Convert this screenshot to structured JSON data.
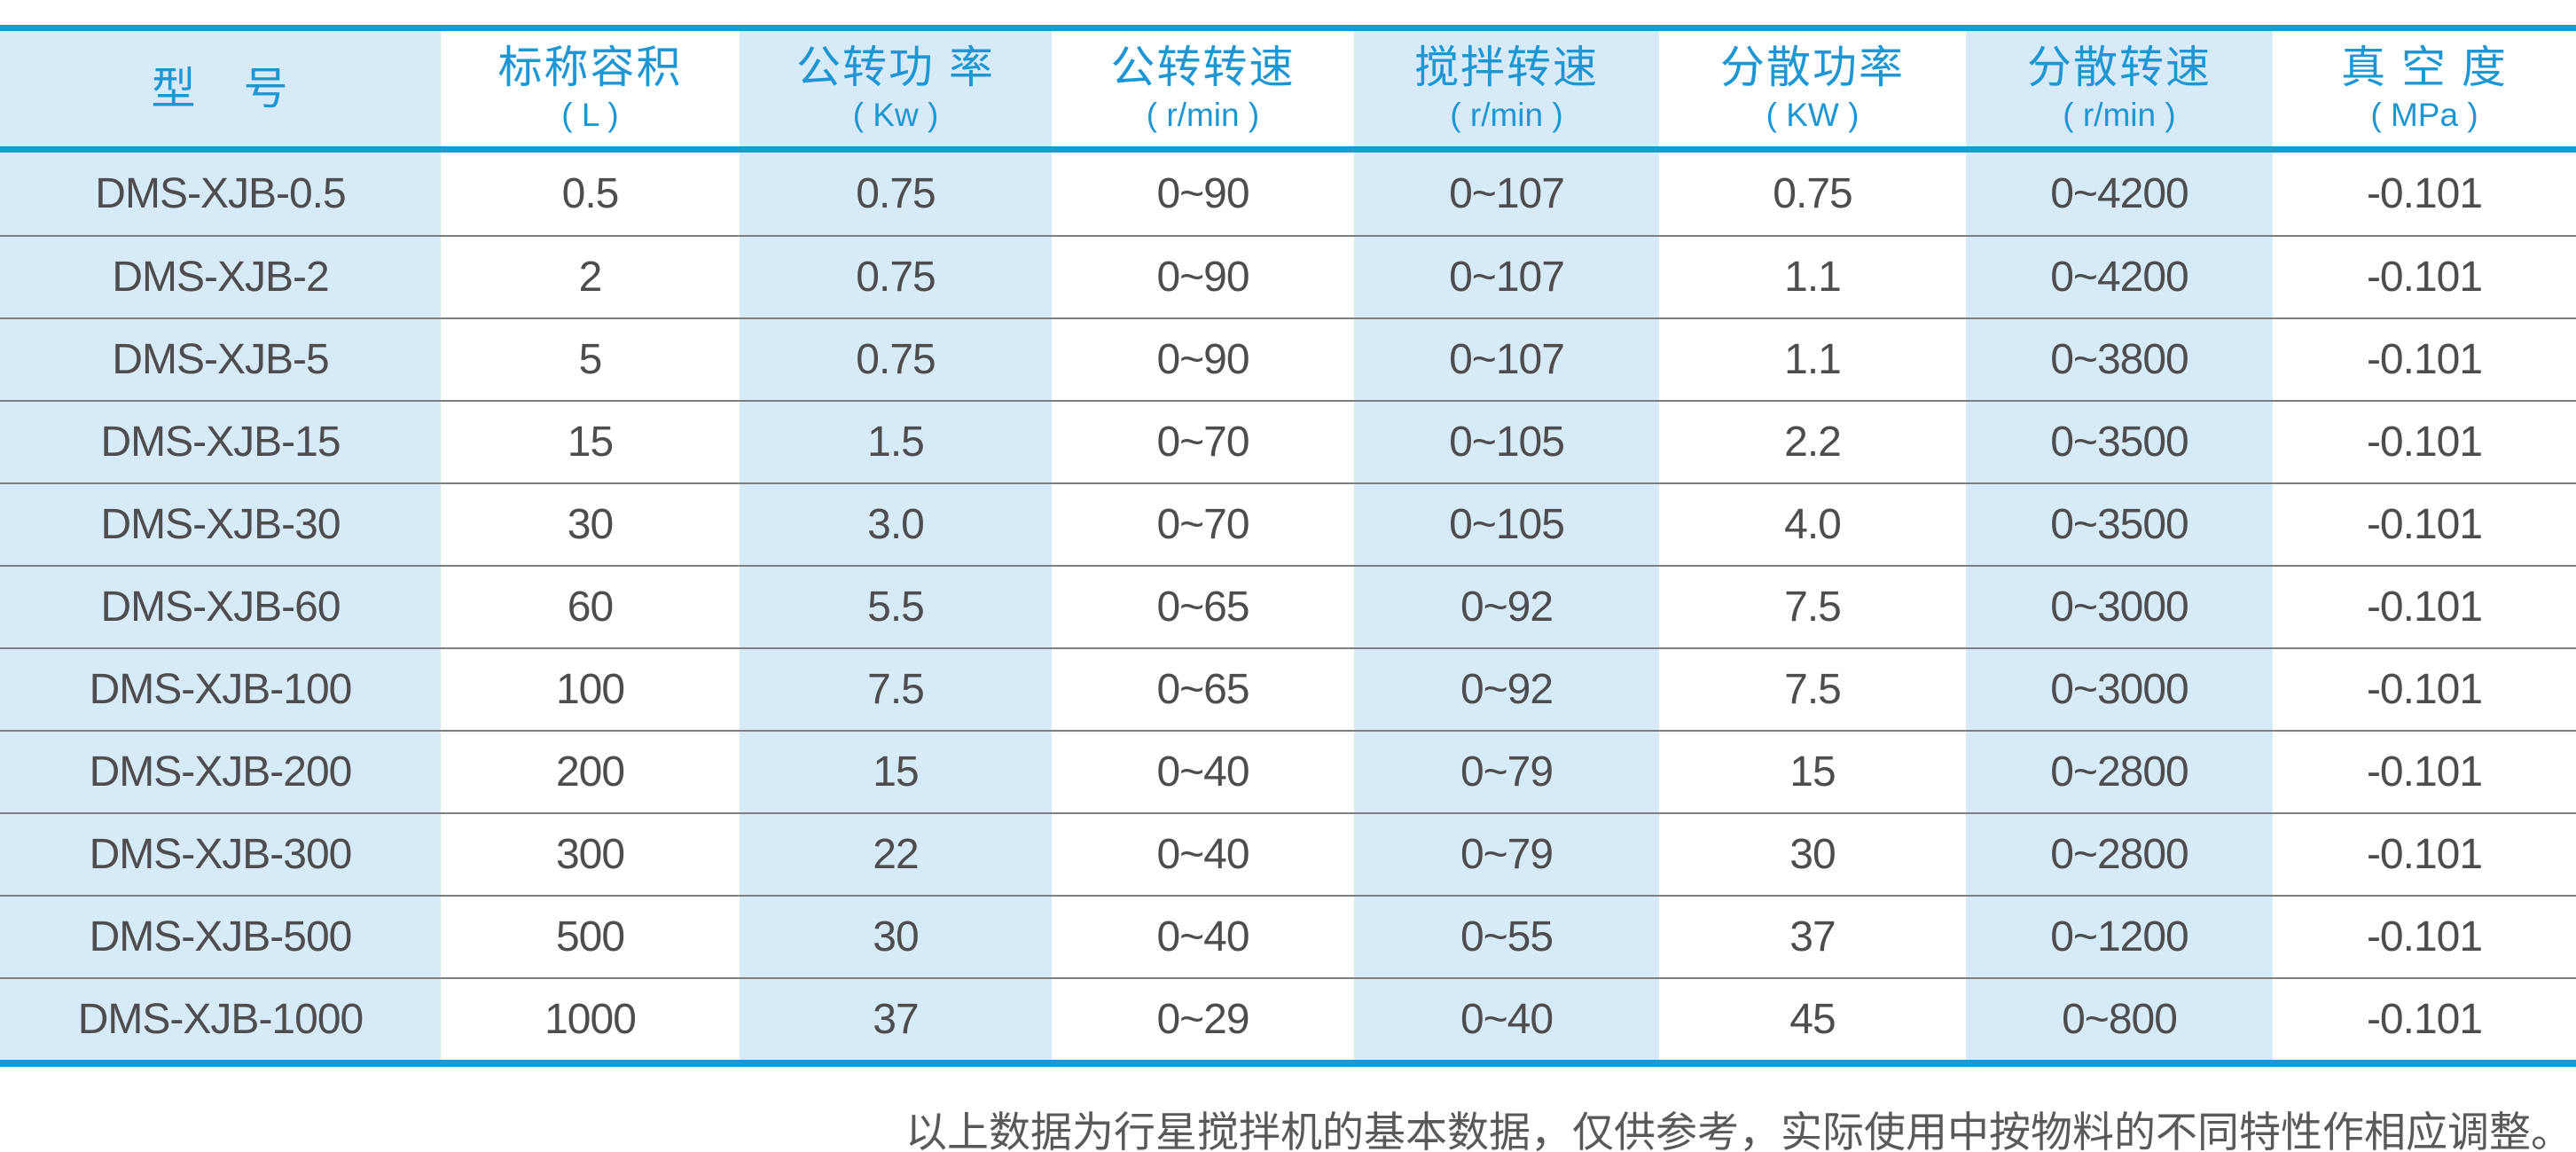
{
  "colors": {
    "accent_line": "#1b9ad6",
    "column_tint": "#d7eaf8",
    "header_text": "#1f96d4",
    "body_text": "#4d4d4f",
    "row_divider": "#7f7f7f",
    "note_text": "#58595b"
  },
  "table": {
    "columns": [
      {
        "title": "型　号",
        "unit": ""
      },
      {
        "title": "标称容积",
        "unit": "( L )"
      },
      {
        "title": "公转功 率",
        "unit": "( Kw )"
      },
      {
        "title": "公转转速",
        "unit": "( r/min )"
      },
      {
        "title": "搅拌转速",
        "unit": "( r/min )"
      },
      {
        "title": "分散功率",
        "unit": "( KW )"
      },
      {
        "title": "分散转速",
        "unit": "( r/min )"
      },
      {
        "title": "真 空 度",
        "unit": "( MPa )"
      }
    ],
    "rows": [
      [
        "DMS-XJB-0.5",
        "0.5",
        "0.75",
        "0~90",
        "0~107",
        "0.75",
        "0~4200",
        "-0.101"
      ],
      [
        "DMS-XJB-2",
        "2",
        "0.75",
        "0~90",
        "0~107",
        "1.1",
        "0~4200",
        "-0.101"
      ],
      [
        "DMS-XJB-5",
        "5",
        "0.75",
        "0~90",
        "0~107",
        "1.1",
        "0~3800",
        "-0.101"
      ],
      [
        "DMS-XJB-15",
        "15",
        "1.5",
        "0~70",
        "0~105",
        "2.2",
        "0~3500",
        "-0.101"
      ],
      [
        "DMS-XJB-30",
        "30",
        "3.0",
        "0~70",
        "0~105",
        "4.0",
        "0~3500",
        "-0.101"
      ],
      [
        "DMS-XJB-60",
        "60",
        "5.5",
        "0~65",
        "0~92",
        "7.5",
        "0~3000",
        "-0.101"
      ],
      [
        "DMS-XJB-100",
        "100",
        "7.5",
        "0~65",
        "0~92",
        "7.5",
        "0~3000",
        "-0.101"
      ],
      [
        "DMS-XJB-200",
        "200",
        "15",
        "0~40",
        "0~79",
        "15",
        "0~2800",
        "-0.101"
      ],
      [
        "DMS-XJB-300",
        "300",
        "22",
        "0~40",
        "0~79",
        "30",
        "0~2800",
        "-0.101"
      ],
      [
        "DMS-XJB-500",
        "500",
        "30",
        "0~40",
        "0~55",
        "37",
        "0~1200",
        "-0.101"
      ],
      [
        "DMS-XJB-1000",
        "1000",
        "37",
        "0~29",
        "0~40",
        "45",
        "0~800",
        "-0.101"
      ]
    ]
  },
  "note": "以上数据为行星搅拌机的基本数据，仅供参考，实际使用中按物料的不同特性作相应调整。"
}
